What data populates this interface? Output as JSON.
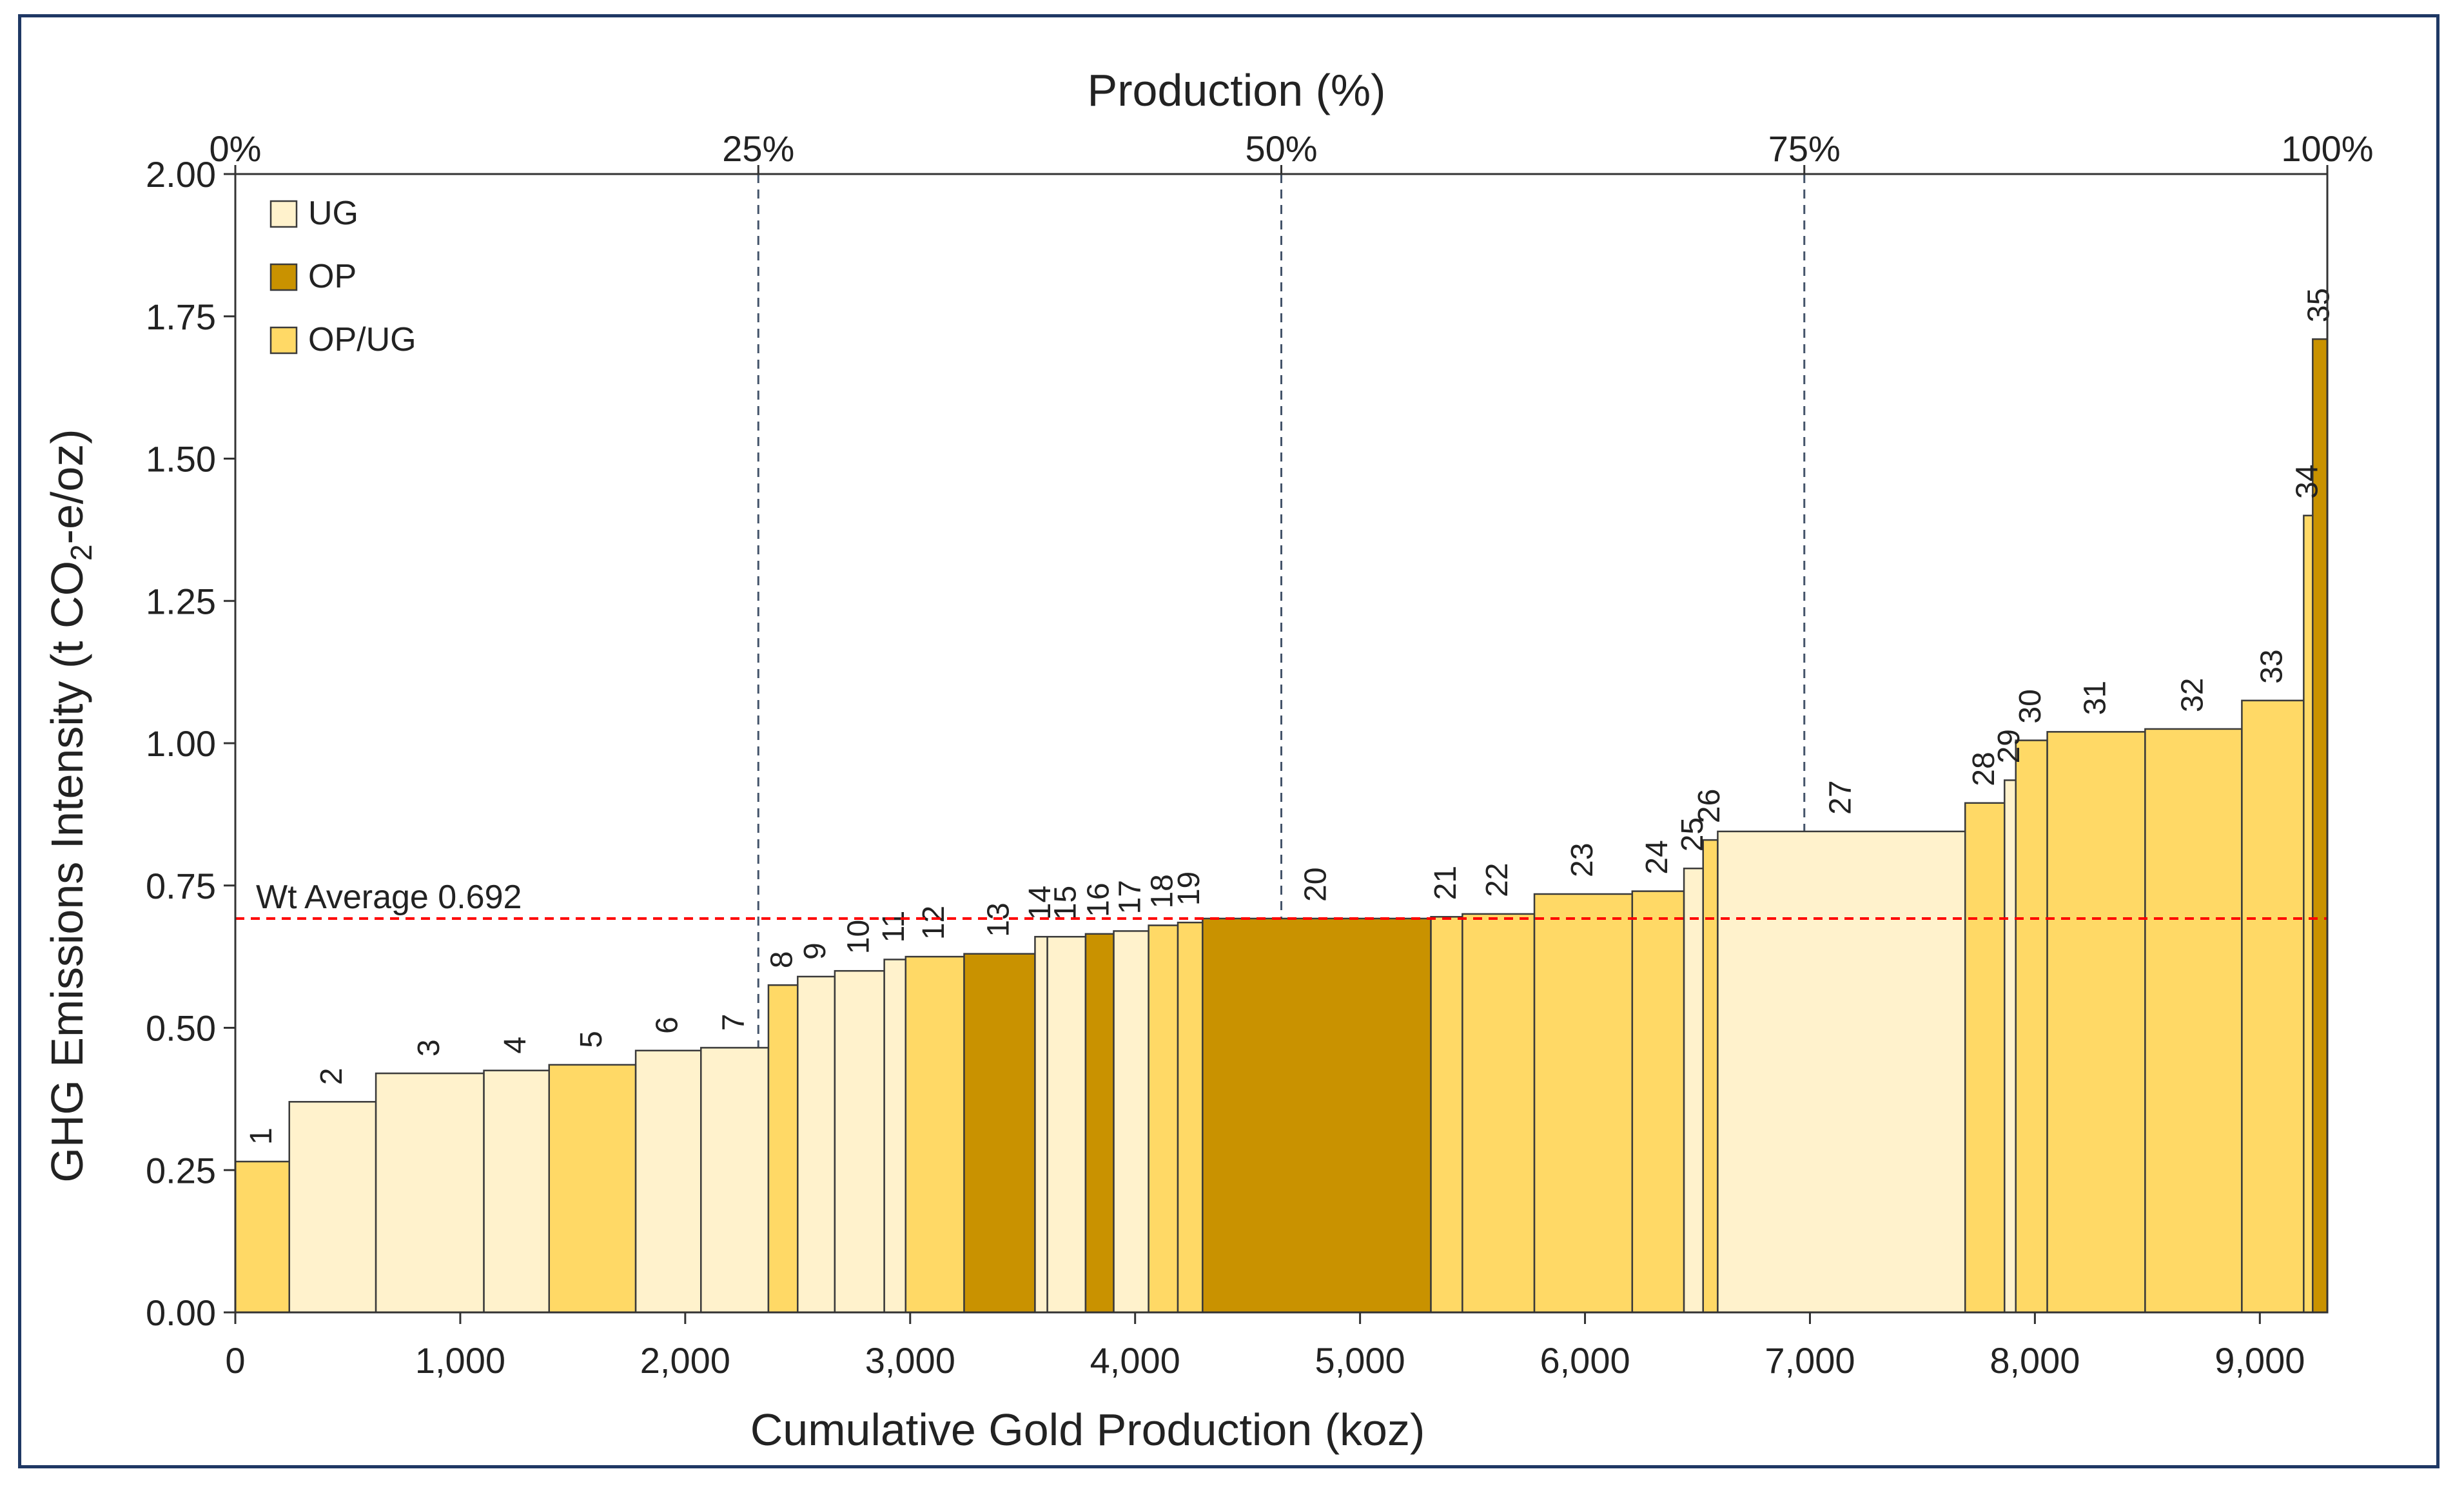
{
  "chart_data": {
    "type": "bar",
    "subtype": "cost-curve (variable-width bars)",
    "title": "",
    "xlabel": "Cumulative Gold Production (koz)",
    "ylabel": "GHG Emissions Intensity (t CO",
    "ylabel_sub": "2",
    "ylabel_tail": "-e/oz)",
    "top_axis_label": "Production (%)",
    "xlim": [
      0,
      9300
    ],
    "ylim": [
      0,
      2.0
    ],
    "x_ticks": [
      0,
      1000,
      2000,
      3000,
      4000,
      5000,
      6000,
      7000,
      8000,
      9000
    ],
    "x_tick_labels": [
      "0",
      "1,000",
      "2,000",
      "3,000",
      "4,000",
      "5,000",
      "6,000",
      "7,000",
      "8,000",
      "9,000"
    ],
    "y_ticks": [
      0,
      0.25,
      0.5,
      0.75,
      1.0,
      1.25,
      1.5,
      1.75,
      2.0
    ],
    "y_tick_labels": [
      "0.00",
      "0.25",
      "0.50",
      "0.75",
      "1.00",
      "1.25",
      "1.50",
      "1.75",
      "2.00"
    ],
    "top_ticks": [
      0,
      25,
      50,
      75,
      100
    ],
    "top_tick_labels": [
      "0%",
      "25%",
      "50%",
      "75%",
      "100%"
    ],
    "total_production_koz": 9300,
    "legend": [
      {
        "key": "UG",
        "label": "UG",
        "color": "#fff2cc"
      },
      {
        "key": "OP",
        "label": "OP",
        "color": "#c99200"
      },
      {
        "key": "OPUG",
        "label": "OP/UG",
        "color": "#ffd966"
      }
    ],
    "legend_position": "top-left",
    "average": {
      "value": 0.692,
      "label": "Wt Average 0.692",
      "color": "#ff0000"
    },
    "quartile_lines_percent": [
      25,
      50,
      75
    ],
    "bars": [
      {
        "id": "1",
        "x0": 0,
        "x1": 240,
        "value": 0.265,
        "type": "OPUG"
      },
      {
        "id": "2",
        "x0": 240,
        "x1": 625,
        "value": 0.37,
        "type": "UG"
      },
      {
        "id": "3",
        "x0": 625,
        "x1": 1105,
        "value": 0.42,
        "type": "UG"
      },
      {
        "id": "4",
        "x0": 1105,
        "x1": 1395,
        "value": 0.425,
        "type": "UG"
      },
      {
        "id": "5",
        "x0": 1395,
        "x1": 1780,
        "value": 0.435,
        "type": "OPUG"
      },
      {
        "id": "6",
        "x0": 1780,
        "x1": 2070,
        "value": 0.46,
        "type": "UG"
      },
      {
        "id": "7",
        "x0": 2070,
        "x1": 2370,
        "value": 0.465,
        "type": "UG"
      },
      {
        "id": "8",
        "x0": 2370,
        "x1": 2500,
        "value": 0.575,
        "type": "OPUG"
      },
      {
        "id": "9",
        "x0": 2500,
        "x1": 2665,
        "value": 0.59,
        "type": "UG"
      },
      {
        "id": "10",
        "x0": 2665,
        "x1": 2885,
        "value": 0.6,
        "type": "UG"
      },
      {
        "id": "11",
        "x0": 2885,
        "x1": 2980,
        "value": 0.62,
        "type": "UG"
      },
      {
        "id": "12",
        "x0": 2980,
        "x1": 3240,
        "value": 0.625,
        "type": "OPUG"
      },
      {
        "id": "13",
        "x0": 3240,
        "x1": 3555,
        "value": 0.63,
        "type": "OP"
      },
      {
        "id": "14",
        "x0": 3555,
        "x1": 3610,
        "value": 0.66,
        "type": "UG"
      },
      {
        "id": "15",
        "x0": 3610,
        "x1": 3780,
        "value": 0.66,
        "type": "UG"
      },
      {
        "id": "16",
        "x0": 3780,
        "x1": 3905,
        "value": 0.665,
        "type": "OP"
      },
      {
        "id": "17",
        "x0": 3905,
        "x1": 4060,
        "value": 0.67,
        "type": "UG"
      },
      {
        "id": "18",
        "x0": 4060,
        "x1": 4190,
        "value": 0.68,
        "type": "OPUG"
      },
      {
        "id": "19",
        "x0": 4190,
        "x1": 4300,
        "value": 0.685,
        "type": "OPUG"
      },
      {
        "id": "20",
        "x0": 4300,
        "x1": 5315,
        "value": 0.692,
        "type": "OP"
      },
      {
        "id": "21",
        "x0": 5315,
        "x1": 5455,
        "value": 0.695,
        "type": "OPUG"
      },
      {
        "id": "22",
        "x0": 5455,
        "x1": 5775,
        "value": 0.7,
        "type": "OPUG"
      },
      {
        "id": "23",
        "x0": 5775,
        "x1": 6210,
        "value": 0.735,
        "type": "OPUG"
      },
      {
        "id": "24",
        "x0": 6210,
        "x1": 6440,
        "value": 0.74,
        "type": "OPUG"
      },
      {
        "id": "25",
        "x0": 6440,
        "x1": 6525,
        "value": 0.78,
        "type": "UG"
      },
      {
        "id": "26",
        "x0": 6525,
        "x1": 6590,
        "value": 0.83,
        "type": "OPUG"
      },
      {
        "id": "27",
        "x0": 6590,
        "x1": 7690,
        "value": 0.845,
        "type": "UG"
      },
      {
        "id": "28",
        "x0": 7690,
        "x1": 7865,
        "value": 0.895,
        "type": "OPUG"
      },
      {
        "id": "29",
        "x0": 7865,
        "x1": 7915,
        "value": 0.935,
        "type": "UG"
      },
      {
        "id": "30",
        "x0": 7915,
        "x1": 8055,
        "value": 1.005,
        "type": "OPUG"
      },
      {
        "id": "31",
        "x0": 8055,
        "x1": 8490,
        "value": 1.02,
        "type": "OPUG"
      },
      {
        "id": "32",
        "x0": 8490,
        "x1": 8920,
        "value": 1.025,
        "type": "OPUG"
      },
      {
        "id": "33",
        "x0": 8920,
        "x1": 9195,
        "value": 1.075,
        "type": "OPUG"
      },
      {
        "id": "34",
        "x0": 9195,
        "x1": 9235,
        "value": 1.4,
        "type": "OPUG"
      },
      {
        "id": "35",
        "x0": 9235,
        "x1": 9300,
        "value": 1.71,
        "type": "OP"
      }
    ]
  }
}
